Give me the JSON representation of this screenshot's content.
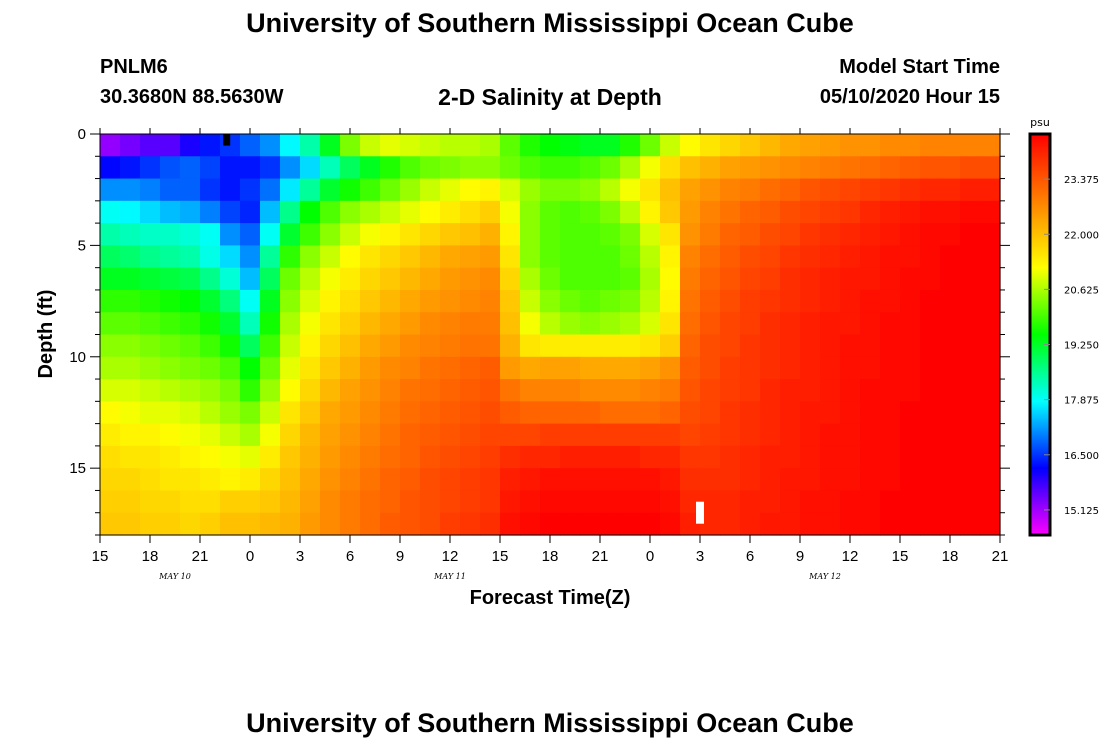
{
  "header": {
    "title_top": "University of Southern Mississippi Ocean Cube",
    "title_bottom": "University of Southern Mississippi Ocean Cube",
    "station_id": "PNLM6",
    "coordinates": "30.3680N 88.5630W",
    "plot_title": "2-D Salinity at Depth",
    "model_start_label": "Model Start Time",
    "model_start_value": "05/10/2020 Hour 15"
  },
  "chart_data": {
    "type": "heatmap",
    "title": "2-D Salinity at Depth",
    "xlabel": "Forecast Time(Z)",
    "ylabel": "Depth (ft)",
    "x_ticks": [
      "15",
      "18",
      "21",
      "0",
      "3",
      "6",
      "9",
      "12",
      "15",
      "18",
      "21",
      "0",
      "3",
      "6",
      "9",
      "12",
      "15",
      "18",
      "21"
    ],
    "date_labels": [
      {
        "label": "MAY  10",
        "tick_index": 1.5
      },
      {
        "label": "MAY  11",
        "tick_index": 7
      },
      {
        "label": "MAY  12",
        "tick_index": 14.5
      }
    ],
    "y_ticks": [
      0,
      5,
      10,
      15
    ],
    "ylim": [
      0,
      18
    ],
    "x_hours": [
      0,
      54
    ],
    "colorbar": {
      "unit": "psu",
      "min": 14.5,
      "max": 24.5,
      "ticks": [
        15.125,
        16.5,
        17.875,
        19.25,
        20.625,
        22.0,
        23.375
      ],
      "tick_labels": [
        "15.125",
        "16.500",
        "17.875",
        "19.250",
        "20.625",
        "22.000",
        "23.375"
      ],
      "colors": [
        "#ff00ff",
        "#8000ff",
        "#0000ff",
        "#0080ff",
        "#00ffff",
        "#00ff80",
        "#00ff00",
        "#80ff00",
        "#ffff00",
        "#ffc000",
        "#ff8000",
        "#ff4000",
        "#ff0000"
      ]
    },
    "salinity_psu": [
      [
        15.2,
        15.4,
        15.6,
        15.6,
        16.0,
        16.3,
        16.5,
        16.8,
        17.1,
        17.8,
        18.4,
        19.3,
        20.3,
        20.8,
        21.0,
        20.9,
        20.8,
        20.7,
        20.7,
        20.6,
        20.1,
        19.7,
        19.5,
        19.4,
        19.3,
        19.3,
        19.7,
        20.2,
        20.8,
        21.2,
        21.5,
        21.7,
        21.9,
        22.1,
        22.3,
        22.4,
        22.5,
        22.6,
        22.6,
        22.7,
        22.7,
        22.8,
        22.8,
        22.8,
        22.8
      ],
      [
        16.2,
        16.3,
        16.5,
        16.7,
        16.8,
        16.6,
        16.3,
        16.3,
        16.5,
        17.1,
        17.6,
        18.3,
        18.9,
        19.3,
        19.7,
        20.0,
        20.2,
        20.3,
        20.4,
        20.4,
        20.2,
        20.0,
        19.9,
        19.9,
        20.0,
        20.2,
        20.6,
        21.1,
        21.6,
        22.0,
        22.2,
        22.4,
        22.5,
        22.6,
        22.7,
        22.8,
        22.9,
        23.0,
        23.1,
        23.2,
        23.3,
        23.4,
        23.4,
        23.5,
        23.5
      ],
      [
        17.1,
        17.1,
        17.0,
        16.8,
        16.8,
        16.5,
        16.3,
        16.5,
        16.9,
        17.7,
        18.5,
        19.2,
        19.6,
        19.9,
        20.2,
        20.5,
        20.8,
        21.0,
        21.2,
        21.3,
        20.9,
        20.5,
        20.3,
        20.3,
        20.4,
        20.7,
        21.1,
        21.5,
        22.0,
        22.4,
        22.6,
        22.8,
        22.9,
        23.1,
        23.2,
        23.4,
        23.5,
        23.6,
        23.7,
        23.8,
        23.9,
        24.0,
        24.0,
        24.1,
        24.1
      ],
      [
        17.9,
        17.8,
        17.6,
        17.4,
        17.3,
        17.0,
        16.6,
        16.4,
        17.4,
        18.6,
        19.5,
        20.0,
        20.4,
        20.6,
        20.8,
        21.0,
        21.2,
        21.4,
        21.6,
        21.8,
        21.1,
        20.4,
        20.1,
        20.0,
        20.1,
        20.3,
        20.7,
        21.3,
        21.9,
        22.5,
        22.8,
        23.0,
        23.2,
        23.3,
        23.5,
        23.6,
        23.7,
        23.8,
        24.0,
        24.1,
        24.2,
        24.3,
        24.3,
        24.4,
        24.4
      ],
      [
        18.4,
        18.3,
        18.2,
        18.2,
        18.1,
        17.9,
        17.1,
        16.8,
        17.9,
        19.2,
        19.9,
        20.4,
        20.8,
        21.1,
        21.3,
        21.5,
        21.7,
        21.9,
        22.0,
        22.2,
        21.3,
        20.4,
        20.1,
        20.0,
        20.0,
        20.1,
        20.3,
        20.9,
        21.5,
        22.6,
        22.9,
        23.2,
        23.3,
        23.5,
        23.6,
        23.8,
        23.9,
        24.0,
        24.1,
        24.2,
        24.3,
        24.4,
        24.4,
        24.5,
        24.5
      ],
      [
        18.9,
        18.8,
        18.6,
        18.5,
        18.4,
        18.0,
        17.6,
        17.1,
        18.5,
        19.8,
        20.4,
        20.8,
        21.2,
        21.5,
        21.7,
        21.9,
        22.1,
        22.3,
        22.4,
        22.5,
        21.5,
        20.4,
        20.1,
        20.0,
        20.0,
        20.0,
        20.2,
        20.7,
        21.3,
        22.8,
        23.1,
        23.3,
        23.5,
        23.6,
        23.8,
        23.9,
        24.0,
        24.1,
        24.2,
        24.3,
        24.3,
        24.4,
        24.5,
        24.5,
        24.5
      ],
      [
        19.3,
        19.3,
        19.2,
        19.1,
        19.0,
        18.6,
        18.1,
        17.4,
        18.9,
        20.2,
        20.7,
        21.1,
        21.4,
        21.7,
        21.9,
        22.1,
        22.3,
        22.5,
        22.6,
        22.7,
        21.7,
        20.6,
        20.2,
        20.0,
        20.0,
        20.0,
        20.1,
        20.6,
        21.2,
        22.9,
        23.2,
        23.4,
        23.6,
        23.7,
        23.9,
        24.0,
        24.1,
        24.2,
        24.2,
        24.3,
        24.4,
        24.4,
        24.5,
        24.5,
        24.5
      ],
      [
        19.8,
        19.8,
        19.7,
        19.6,
        19.5,
        19.2,
        18.7,
        17.9,
        19.3,
        20.4,
        20.9,
        21.3,
        21.6,
        21.9,
        22.1,
        22.3,
        22.5,
        22.6,
        22.7,
        22.8,
        21.9,
        20.8,
        20.4,
        20.2,
        20.1,
        20.2,
        20.3,
        20.7,
        21.3,
        23.0,
        23.3,
        23.5,
        23.7,
        23.8,
        23.9,
        24.0,
        24.1,
        24.2,
        24.3,
        24.3,
        24.4,
        24.5,
        24.5,
        24.5,
        24.5
      ],
      [
        20.1,
        20.1,
        20.0,
        19.9,
        19.8,
        19.6,
        19.2,
        18.3,
        19.6,
        20.6,
        21.1,
        21.5,
        21.8,
        22.1,
        22.3,
        22.5,
        22.7,
        22.8,
        22.9,
        22.9,
        22.0,
        21.1,
        20.7,
        20.5,
        20.4,
        20.5,
        20.6,
        20.9,
        21.5,
        23.1,
        23.4,
        23.6,
        23.7,
        23.9,
        24.0,
        24.1,
        24.2,
        24.2,
        24.3,
        24.4,
        24.4,
        24.5,
        24.5,
        24.5,
        24.5
      ],
      [
        20.4,
        20.4,
        20.3,
        20.2,
        20.1,
        19.9,
        19.6,
        18.9,
        19.9,
        20.8,
        21.3,
        21.7,
        22.0,
        22.3,
        22.5,
        22.7,
        22.8,
        22.9,
        23.0,
        23.0,
        22.2,
        21.5,
        21.4,
        21.4,
        21.4,
        21.4,
        21.4,
        21.5,
        21.8,
        23.2,
        23.5,
        23.6,
        23.8,
        23.9,
        24.0,
        24.1,
        24.2,
        24.3,
        24.3,
        24.4,
        24.4,
        24.5,
        24.5,
        24.5,
        24.5
      ],
      [
        20.6,
        20.6,
        20.5,
        20.4,
        20.3,
        20.2,
        20.0,
        19.5,
        20.2,
        21.0,
        21.5,
        21.9,
        22.2,
        22.5,
        22.7,
        22.8,
        23.0,
        23.1,
        23.2,
        23.3,
        22.5,
        22.3,
        22.4,
        22.4,
        22.3,
        22.3,
        22.3,
        22.4,
        22.6,
        23.3,
        23.5,
        23.7,
        23.8,
        23.9,
        24.0,
        24.1,
        24.2,
        24.3,
        24.3,
        24.4,
        24.4,
        24.5,
        24.5,
        24.5,
        24.5
      ],
      [
        20.9,
        20.9,
        20.8,
        20.7,
        20.6,
        20.5,
        20.3,
        19.8,
        20.5,
        21.2,
        21.7,
        22.1,
        22.4,
        22.6,
        22.8,
        23.0,
        23.1,
        23.2,
        23.3,
        23.4,
        23.0,
        22.8,
        22.8,
        22.8,
        22.7,
        22.7,
        22.7,
        22.8,
        22.9,
        23.4,
        23.6,
        23.7,
        23.8,
        24.0,
        24.1,
        24.1,
        24.2,
        24.3,
        24.4,
        24.4,
        24.4,
        24.5,
        24.5,
        24.5,
        24.5
      ],
      [
        21.2,
        21.1,
        21.0,
        21.0,
        20.9,
        20.7,
        20.5,
        20.3,
        20.8,
        21.5,
        21.9,
        22.3,
        22.5,
        22.7,
        22.9,
        23.1,
        23.2,
        23.3,
        23.4,
        23.5,
        23.3,
        23.2,
        23.2,
        23.2,
        23.2,
        23.1,
        23.1,
        23.1,
        23.2,
        23.5,
        23.6,
        23.8,
        23.9,
        24.0,
        24.1,
        24.2,
        24.2,
        24.3,
        24.4,
        24.4,
        24.5,
        24.5,
        24.5,
        24.5,
        24.5
      ],
      [
        21.4,
        21.3,
        21.3,
        21.2,
        21.1,
        21.0,
        20.8,
        20.6,
        21.1,
        21.7,
        22.1,
        22.4,
        22.6,
        22.8,
        23.0,
        23.2,
        23.3,
        23.4,
        23.5,
        23.6,
        23.6,
        23.6,
        23.7,
        23.7,
        23.7,
        23.7,
        23.7,
        23.7,
        23.7,
        23.6,
        23.7,
        23.8,
        23.9,
        24.0,
        24.1,
        24.2,
        24.3,
        24.3,
        24.4,
        24.4,
        24.5,
        24.5,
        24.5,
        24.5,
        24.5
      ],
      [
        21.6,
        21.5,
        21.5,
        21.4,
        21.3,
        21.2,
        21.1,
        21.0,
        21.4,
        21.9,
        22.2,
        22.5,
        22.7,
        22.9,
        23.1,
        23.2,
        23.4,
        23.5,
        23.6,
        23.7,
        23.9,
        24.0,
        24.0,
        24.1,
        24.1,
        24.1,
        24.1,
        24.0,
        24.0,
        23.8,
        23.8,
        23.9,
        24.0,
        24.1,
        24.1,
        24.2,
        24.3,
        24.3,
        24.4,
        24.4,
        24.5,
        24.5,
        24.5,
        24.5,
        24.5
      ],
      [
        21.7,
        21.7,
        21.6,
        21.5,
        21.5,
        21.4,
        21.3,
        21.4,
        21.7,
        22.0,
        22.3,
        22.6,
        22.8,
        23.0,
        23.2,
        23.3,
        23.5,
        23.6,
        23.7,
        23.8,
        24.1,
        24.2,
        24.3,
        24.3,
        24.3,
        24.3,
        24.3,
        24.3,
        24.2,
        23.9,
        23.9,
        23.9,
        24.0,
        24.1,
        24.2,
        24.2,
        24.3,
        24.3,
        24.4,
        24.4,
        24.5,
        24.5,
        24.5,
        24.5,
        24.5
      ],
      [
        21.8,
        21.8,
        21.7,
        21.7,
        21.6,
        21.6,
        21.8,
        21.8,
        21.9,
        22.1,
        22.4,
        22.7,
        22.9,
        23.1,
        23.2,
        23.4,
        23.5,
        23.6,
        23.7,
        23.8,
        24.2,
        24.3,
        24.4,
        24.4,
        24.4,
        24.4,
        24.4,
        24.4,
        24.3,
        24.0,
        24.0,
        24.0,
        24.1,
        24.1,
        24.2,
        24.3,
        24.3,
        24.4,
        24.4,
        24.5,
        24.5,
        24.5,
        24.5,
        24.5,
        24.5
      ],
      [
        21.9,
        21.9,
        21.8,
        21.8,
        21.7,
        21.8,
        22.0,
        22.0,
        22.1,
        22.2,
        22.5,
        22.7,
        22.9,
        23.1,
        23.3,
        23.4,
        23.5,
        23.7,
        23.8,
        23.9,
        24.3,
        24.4,
        24.5,
        24.5,
        24.5,
        24.5,
        24.5,
        24.5,
        24.4,
        24.1,
        24.0,
        24.0,
        24.1,
        24.2,
        24.2,
        24.3,
        24.3,
        24.4,
        24.4,
        24.5,
        24.5,
        24.5,
        24.5,
        24.5,
        24.5
      ]
    ],
    "markers": [
      {
        "color": "#000000",
        "hour": 7.6,
        "depth": 0.25
      },
      {
        "color": "#ffffff",
        "hour": 36,
        "depth": 17.0
      }
    ]
  }
}
